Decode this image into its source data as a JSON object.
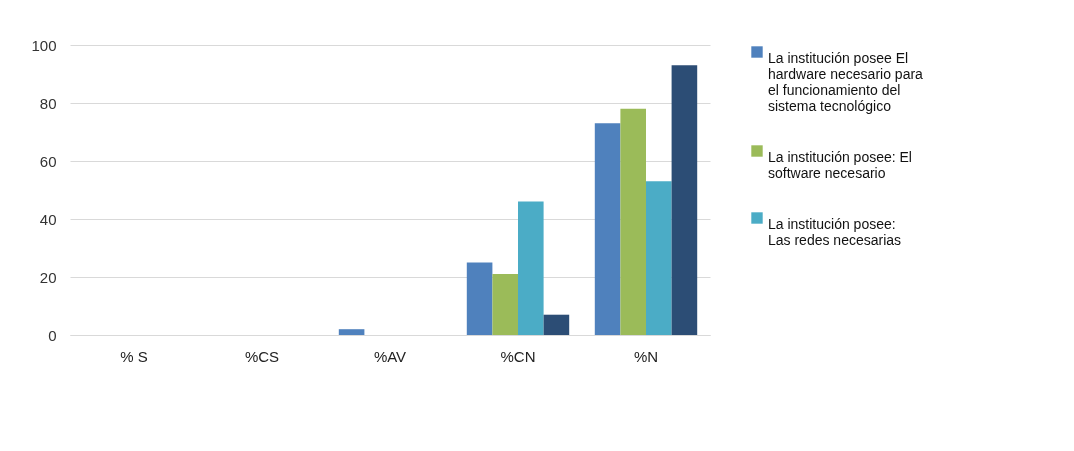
{
  "chart_data": {
    "type": "bar",
    "categories": [
      "% S",
      "%CS",
      "%AV",
      "%CN",
      "%N"
    ],
    "series": [
      {
        "name": "La institución posee El hardware necesario para el funcionamiento del sistema tecnológico",
        "color": "#4f81bd",
        "values": [
          0,
          0,
          2,
          25,
          73
        ]
      },
      {
        "name": "La institución posee: El software necesario",
        "color": "#9bbb59",
        "values": [
          0,
          0,
          0,
          21,
          78
        ]
      },
      {
        "name": "La institución posee: Las redes necesarias",
        "color": "#4bacc6",
        "values": [
          0,
          0,
          0,
          46,
          53
        ]
      },
      {
        "color": "#2c4d75",
        "values": [
          0,
          0,
          0,
          7,
          93
        ]
      }
    ],
    "ylim": [
      0,
      100
    ],
    "yticks": [
      0,
      20,
      40,
      60,
      80,
      100
    ],
    "grid": "y",
    "legend": "right"
  }
}
